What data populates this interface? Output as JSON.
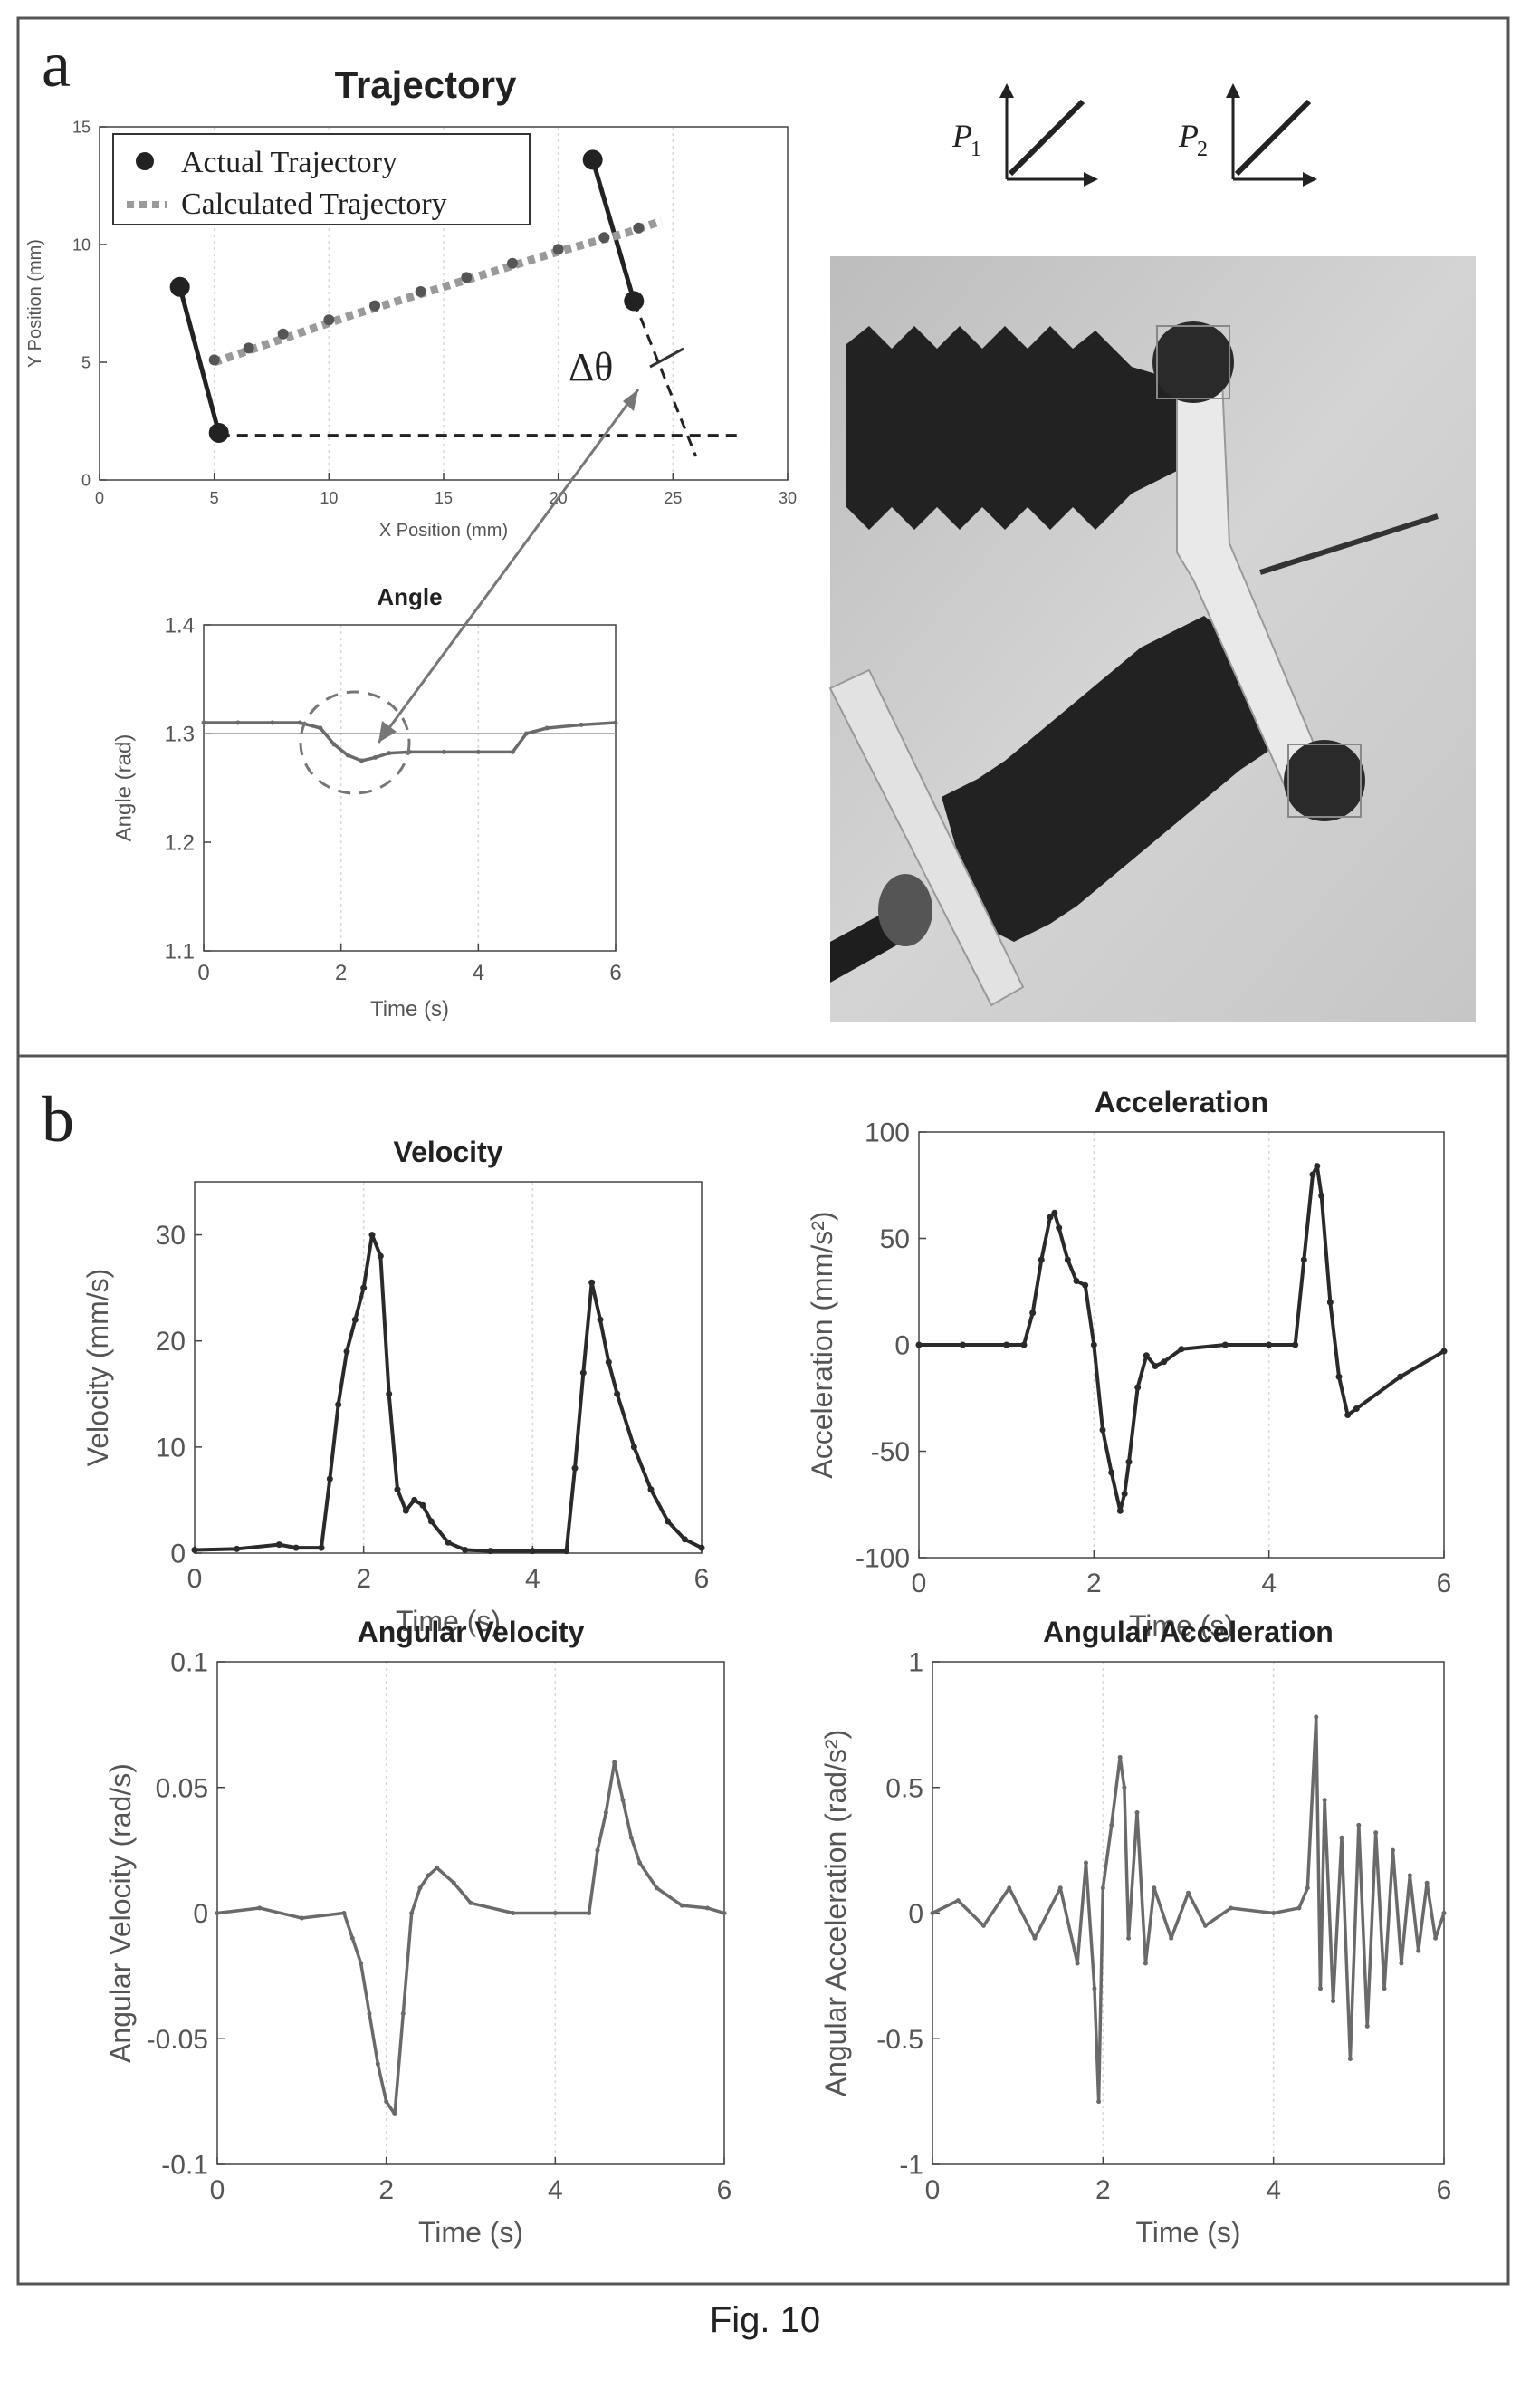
{
  "panels": {
    "a_label": "a",
    "b_label": "b"
  },
  "caption": "Fig. 10",
  "diagram": {
    "p1_label": "P",
    "p1_sub": "1",
    "p2_label": "P",
    "p2_sub": "2",
    "delta_theta": "Δθ"
  },
  "photo": {
    "description_icon": "soft-actuator-photo"
  },
  "colors": {
    "frame": "#555555",
    "dark_series": "#2a2a2a",
    "gray_series": "#6a6a6a",
    "calc_series": "#9a9a9a",
    "axis": "#444444",
    "grid": "#d8d8d8"
  },
  "chart_data": [
    {
      "id": "trajectory",
      "type": "scatter",
      "title": "Trajectory",
      "xlabel": "X Position (mm)",
      "ylabel": "Y Position (mm)",
      "xlim": [
        0,
        30
      ],
      "ylim": [
        0,
        15
      ],
      "xticks": [
        0,
        5,
        10,
        15,
        20,
        25,
        30
      ],
      "yticks": [
        0,
        5,
        10,
        15
      ],
      "legend": [
        "Actual Trajectory",
        "Calculated Trajectory"
      ],
      "legend_position": "top-left",
      "series": [
        {
          "name": "Actual Trajectory",
          "x": [
            5.0,
            6.5,
            8.0,
            10.0,
            12.0,
            14.0,
            16.0,
            18.0,
            20.0,
            22.0,
            23.5
          ],
          "y": [
            5.1,
            5.6,
            6.2,
            6.8,
            7.4,
            8.0,
            8.6,
            9.2,
            9.8,
            10.3,
            10.7
          ]
        },
        {
          "name": "Calculated Trajectory",
          "x": [
            5.0,
            8.0,
            11.0,
            14.0,
            17.0,
            20.0,
            23.0,
            24.5
          ],
          "y": [
            5.0,
            6.0,
            7.0,
            7.9,
            8.8,
            9.7,
            10.5,
            11.0
          ]
        }
      ],
      "links": [
        {
          "x": [
            3.5,
            5.2
          ],
          "y": [
            8.2,
            2.0
          ]
        },
        {
          "x": [
            21.5,
            23.3
          ],
          "y": [
            13.6,
            7.6
          ]
        }
      ],
      "dashed": [
        {
          "x": [
            5.2,
            28.0
          ],
          "y": [
            1.9,
            1.9
          ]
        },
        {
          "x": [
            23.3,
            26.0
          ],
          "y": [
            7.6,
            1.0
          ]
        }
      ]
    },
    {
      "id": "angle",
      "type": "line",
      "title": "Angle",
      "xlabel": "Time (s)",
      "ylabel": "Angle (rad)",
      "xlim": [
        0,
        6
      ],
      "ylim": [
        1.1,
        1.4
      ],
      "xticks": [
        0,
        2,
        4,
        6
      ],
      "yticks": [
        1.1,
        1.2,
        1.3,
        1.4
      ],
      "reference": 1.3,
      "x": [
        0,
        0.5,
        1.0,
        1.4,
        1.7,
        1.9,
        2.1,
        2.3,
        2.5,
        2.7,
        3.0,
        3.5,
        4.0,
        4.5,
        4.7,
        5.0,
        5.5,
        6.0
      ],
      "y": [
        1.31,
        1.31,
        1.31,
        1.31,
        1.305,
        1.29,
        1.28,
        1.275,
        1.278,
        1.282,
        1.283,
        1.283,
        1.283,
        1.283,
        1.3,
        1.305,
        1.308,
        1.31
      ]
    },
    {
      "id": "velocity",
      "type": "line",
      "title": "Velocity",
      "xlabel": "Time (s)",
      "ylabel": "Velocity (mm/s)",
      "xlim": [
        0,
        6
      ],
      "ylim": [
        0,
        35
      ],
      "xticks": [
        0,
        2,
        4,
        6
      ],
      "yticks": [
        0,
        10,
        20,
        30
      ],
      "x": [
        0,
        0.5,
        1.0,
        1.2,
        1.5,
        1.6,
        1.7,
        1.8,
        1.9,
        2.0,
        2.1,
        2.2,
        2.3,
        2.4,
        2.5,
        2.6,
        2.7,
        2.8,
        3.0,
        3.2,
        3.5,
        4.0,
        4.4,
        4.5,
        4.6,
        4.7,
        4.8,
        4.9,
        5.0,
        5.2,
        5.4,
        5.6,
        5.8,
        6.0
      ],
      "y": [
        0.3,
        0.4,
        0.8,
        0.5,
        0.5,
        7.0,
        14.0,
        19.0,
        22.0,
        25.0,
        30.0,
        28.0,
        15.0,
        6.0,
        4.0,
        5.0,
        4.5,
        3.0,
        1.0,
        0.3,
        0.2,
        0.2,
        0.2,
        8.0,
        17.0,
        25.5,
        22.0,
        18.0,
        15.0,
        10.0,
        6.0,
        3.0,
        1.3,
        0.5
      ]
    },
    {
      "id": "acceleration",
      "type": "line",
      "title": "Acceleration",
      "xlabel": "Time (s)",
      "ylabel": "Acceleration (mm/s²)",
      "xlim": [
        0,
        6
      ],
      "ylim": [
        -100,
        100
      ],
      "xticks": [
        0,
        2,
        4,
        6
      ],
      "yticks": [
        -100,
        -50,
        0,
        50,
        100
      ],
      "x": [
        0,
        0.5,
        1.0,
        1.2,
        1.3,
        1.4,
        1.5,
        1.55,
        1.6,
        1.7,
        1.8,
        1.9,
        2.0,
        2.1,
        2.2,
        2.3,
        2.35,
        2.4,
        2.5,
        2.6,
        2.7,
        2.8,
        3.0,
        3.5,
        4.0,
        4.3,
        4.4,
        4.5,
        4.55,
        4.6,
        4.7,
        4.8,
        4.9,
        5.0,
        5.5,
        6.0
      ],
      "y": [
        0,
        0,
        0,
        0,
        15,
        40,
        60,
        62,
        55,
        40,
        30,
        28,
        0,
        -40,
        -60,
        -78,
        -70,
        -55,
        -20,
        -5,
        -10,
        -8,
        -2,
        0,
        0,
        0,
        40,
        80,
        84,
        70,
        20,
        -15,
        -33,
        -30,
        -15,
        -3
      ]
    },
    {
      "id": "angular_velocity",
      "type": "line",
      "title": "Angular Velocity",
      "xlabel": "Time (s)",
      "ylabel": "Angular Velocity (rad/s)",
      "xlim": [
        0,
        6
      ],
      "ylim": [
        -0.1,
        0.1
      ],
      "xticks": [
        0,
        2,
        4,
        6
      ],
      "yticks": [
        -0.1,
        -0.05,
        0,
        0.05,
        0.1
      ],
      "x": [
        0,
        0.5,
        1.0,
        1.5,
        1.6,
        1.7,
        1.8,
        1.9,
        2.0,
        2.1,
        2.2,
        2.3,
        2.4,
        2.5,
        2.6,
        2.8,
        3.0,
        3.5,
        4.0,
        4.4,
        4.5,
        4.6,
        4.7,
        4.8,
        4.9,
        5.0,
        5.2,
        5.5,
        5.8,
        6.0
      ],
      "y": [
        0,
        0.002,
        -0.002,
        0,
        -0.01,
        -0.02,
        -0.04,
        -0.06,
        -0.075,
        -0.08,
        -0.04,
        0,
        0.01,
        0.015,
        0.018,
        0.012,
        0.004,
        0,
        0,
        0,
        0.025,
        0.04,
        0.06,
        0.045,
        0.03,
        0.02,
        0.01,
        0.003,
        0.002,
        0
      ]
    },
    {
      "id": "angular_acceleration",
      "type": "line",
      "title": "Angular Acceleration",
      "xlabel": "Time (s)",
      "ylabel": "Angular Acceleration (rad/s²)",
      "xlim": [
        0,
        6
      ],
      "ylim": [
        -1,
        1
      ],
      "xticks": [
        0,
        2,
        4,
        6
      ],
      "yticks": [
        -1,
        -0.5,
        0,
        0.5,
        1
      ],
      "x": [
        0,
        0.3,
        0.6,
        0.9,
        1.2,
        1.5,
        1.7,
        1.8,
        1.9,
        1.95,
        2.0,
        2.1,
        2.2,
        2.25,
        2.3,
        2.4,
        2.5,
        2.6,
        2.8,
        3.0,
        3.2,
        3.5,
        4.0,
        4.3,
        4.4,
        4.5,
        4.55,
        4.6,
        4.7,
        4.8,
        4.9,
        5.0,
        5.1,
        5.2,
        5.3,
        5.4,
        5.5,
        5.6,
        5.7,
        5.8,
        5.9,
        6.0
      ],
      "y": [
        0,
        0.05,
        -0.05,
        0.1,
        -0.1,
        0.1,
        -0.2,
        0.2,
        -0.3,
        -0.75,
        0.1,
        0.35,
        0.62,
        0.5,
        -0.1,
        0.4,
        -0.2,
        0.1,
        -0.1,
        0.08,
        -0.05,
        0.02,
        0,
        0.02,
        0.1,
        0.78,
        -0.3,
        0.45,
        -0.35,
        0.3,
        -0.58,
        0.35,
        -0.45,
        0.32,
        -0.3,
        0.25,
        -0.2,
        0.15,
        -0.15,
        0.12,
        -0.1,
        0
      ]
    }
  ]
}
